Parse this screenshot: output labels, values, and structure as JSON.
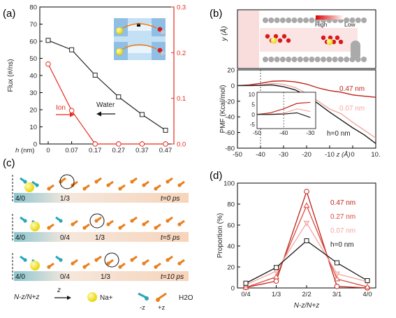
{
  "colors": {
    "water": "#222222",
    "ion": "#e8291c",
    "pore_047": "#c0221a",
    "pore_027": "#d94a3c",
    "pore_007": "#f2a7a3",
    "pore_0": "#1a1a1a",
    "na_yellow": "#f2e21a",
    "oxygen_red": "#d7191c",
    "arrow_cyan": "#2aa6b8",
    "arrow_orange": "#e8801e"
  },
  "panels": {
    "a": {
      "label": "(a)"
    },
    "b": {
      "label": "(b)"
    },
    "c": {
      "label": "(c)"
    },
    "d": {
      "label": "(d)"
    }
  },
  "chart_data": [
    {
      "id": "a",
      "type": "line",
      "x_tick_labels": [
        "0",
        "0.07",
        "0.17",
        "0.27",
        "0.37",
        "0.47"
      ],
      "x_label_prefix": "h",
      "x_label_suffix": " (nm)",
      "ylabel": "Flux (#/ns)",
      "ylabel_right": "",
      "ylim": [
        0,
        80
      ],
      "yticks": [
        "0",
        "10",
        "20",
        "30",
        "40",
        "50",
        "60",
        "70",
        "80"
      ],
      "ylim_right": [
        0,
        0.3
      ],
      "yticks_right": [
        "0.0",
        "0.1",
        "0.2",
        "0.3"
      ],
      "series": [
        {
          "name": "Water",
          "axis": "left",
          "values": [
            60.5,
            55.0,
            40.2,
            27.5,
            17.2,
            8.0
          ]
        },
        {
          "name": "Ion",
          "axis": "right",
          "values": [
            0.175,
            0.073,
            0.0,
            0.0,
            0.0,
            0.0
          ]
        }
      ]
    },
    {
      "id": "b",
      "type": "line",
      "xlabel": "z (Å)",
      "ylabel": "PMF (Kcal/mol)",
      "ylabel_heatmap": "y (Å)",
      "heat_legend_high": "High",
      "heat_legend_low": "Low",
      "xlim": [
        -50,
        10
      ],
      "xticks": [
        "-50",
        "-40",
        "-30",
        "-20",
        "-10",
        "0",
        "10."
      ],
      "ylim": [
        -80,
        20
      ],
      "yticks": [
        "-80",
        "-60",
        "-40",
        "-20",
        "0",
        "20"
      ],
      "series": [
        {
          "name": "0.47 nm",
          "x": [
            -50,
            -45,
            -40,
            -35,
            -30,
            -25,
            -20,
            -15,
            -10,
            -5,
            0,
            5,
            10
          ],
          "y": [
            0,
            0.8,
            2.8,
            5.5,
            6.0,
            4.8,
            1.8,
            -3.0,
            -6.5,
            -8.5,
            -12.0,
            -13.5,
            -15.0
          ]
        },
        {
          "name": "0.07 nm",
          "x": [
            -50,
            -45,
            -40,
            -35,
            -30,
            -25,
            -20,
            -15,
            -10,
            -5,
            0,
            5,
            10
          ],
          "y": [
            0,
            0.2,
            0.6,
            2.8,
            1.5,
            -2.5,
            -10.0,
            -20.0,
            -30.0,
            -36.0,
            -47.0,
            -57.0,
            -67.0
          ]
        },
        {
          "name": "h=0 nm",
          "x": [
            -50,
            -45,
            -40,
            -35,
            -30,
            -25,
            -20,
            -15,
            -10,
            -5,
            0,
            5,
            10
          ],
          "y": [
            0,
            0.0,
            0.2,
            0.8,
            -1.5,
            -5.5,
            -13.0,
            -23.0,
            -34.0,
            -44.0,
            -54.0,
            -63.0,
            -74.0
          ]
        }
      ],
      "inset": {
        "xlim": [
          -50,
          -28
        ],
        "xticks": [
          "-50",
          "-40",
          "-30"
        ],
        "ylim": [
          -7,
          11
        ],
        "yticks": [
          "-5",
          "0",
          "5",
          "10"
        ]
      }
    },
    {
      "id": "d",
      "type": "line",
      "categories": [
        "0/4",
        "1/3",
        "2/2",
        "3/1",
        "4/0"
      ],
      "xlabel": "N-z/N+z",
      "ylabel": "Proportion (%)",
      "ylim": [
        0,
        100
      ],
      "yticks": [
        "0",
        "20",
        "40",
        "60",
        "80",
        "100"
      ],
      "series": [
        {
          "name": "0.47 nm",
          "values": [
            0.5,
            6.5,
            92.0,
            1.5,
            0.0
          ]
        },
        {
          "name": "0.27 nm",
          "values": [
            0.5,
            10.5,
            78.5,
            8.5,
            1.0
          ]
        },
        {
          "name": "0.07 nm",
          "values": [
            3.0,
            16.0,
            62.0,
            13.5,
            6.0
          ]
        },
        {
          "name": "h=0 nm",
          "values": [
            4.5,
            19.5,
            45.0,
            24.0,
            7.0
          ]
        }
      ]
    }
  ],
  "panel_c": {
    "frames": [
      {
        "label_left": "4/0",
        "label_right": "1/3",
        "time": "t=0 ps"
      },
      {
        "label_left": "4/0",
        "label_mid": "0/4",
        "label_right": "1/3",
        "time": "t=5 ps"
      },
      {
        "label_left": "4/0",
        "label_mid": "0/4",
        "label_right": "1/3",
        "time": "t=10 ps"
      }
    ],
    "legend": {
      "ratio": "N-z/N+z",
      "z": "z",
      "na": "Na+",
      "minus_z": "-z",
      "plus_z": "+z",
      "water": "H2O"
    }
  }
}
